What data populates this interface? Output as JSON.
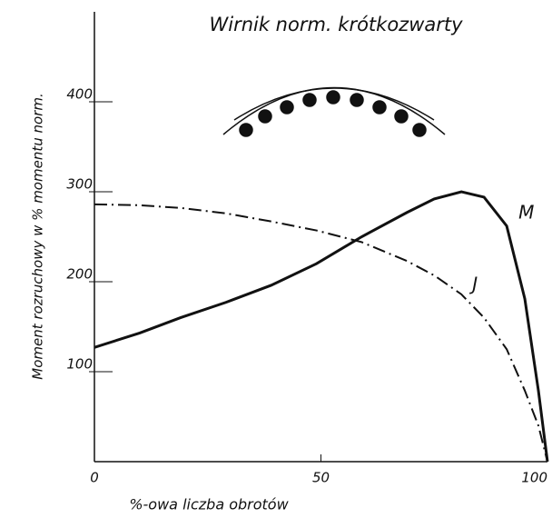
{
  "chart_data": {
    "type": "line",
    "title": "Wirnik norm. krótkozwarty",
    "x_label": "%-owa liczba obrotów",
    "y_label": "Moment rozruchowy w % momentu norm.",
    "x": [
      0,
      10,
      19,
      29,
      39,
      49,
      59,
      69,
      75,
      81,
      86,
      91,
      95,
      98,
      100
    ],
    "series": [
      {
        "name": "M",
        "color": "#111111",
        "values": [
          127,
          143,
          160,
          177,
          196,
          220,
          250,
          277,
          292,
          300,
          294,
          262,
          181,
          79,
          0
        ]
      },
      {
        "name": "J",
        "color": "#111111",
        "values": [
          286,
          285,
          282,
          276,
          267,
          257,
          244,
          223,
          207,
          186,
          160,
          125,
          79,
          40,
          0
        ]
      }
    ],
    "xlim": [
      0,
      100
    ],
    "ylim": [
      0,
      500
    ],
    "xticks": [
      0,
      50,
      100
    ],
    "yticks": [
      100,
      200,
      300,
      400
    ]
  }
}
